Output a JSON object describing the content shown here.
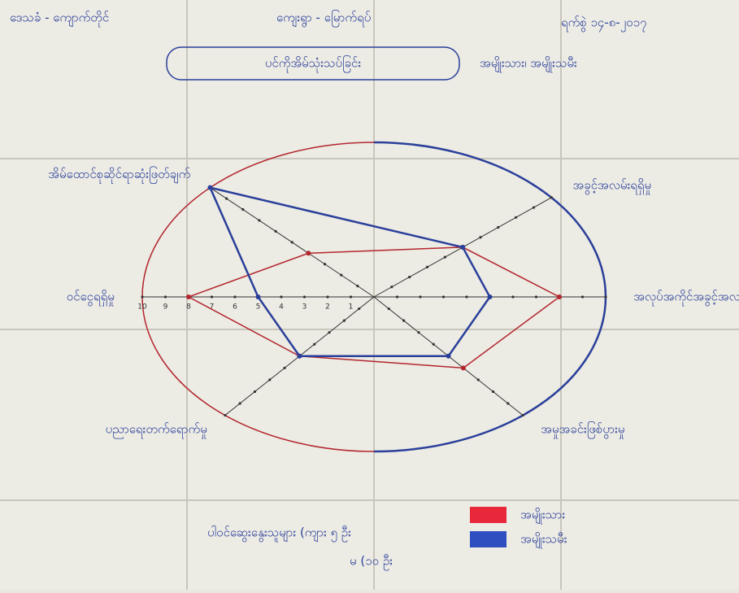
{
  "chart_data": {
    "type": "radar",
    "title": "ပင်ကိုအိမ်သုံးသပ်ခြင်း",
    "subtitle": "အမျိုးသား၊ အမျိုးသမီး",
    "annotations": [
      "ဒေသခံ - ကျောက်တိုင်",
      "ကျေးရွာ - မြောက်ရပ်",
      "ရက်စွဲ ၁၄-၈-၂၀၁၇",
      "ပါဝင်ဆွေးနွေးသူများ (ကျား ၅ ဦး",
      "မ (၁၀ ဦး"
    ],
    "categories": [
      "ဝင်ငွေရရှိမှု",
      "အိမ်ထောင်စုဆိုင်ရာဆုံးဖြတ်ချက်",
      "အခွင့်အလမ်းရရှိမှု",
      "အလုပ်အကိုင်အခွင့်အလမ်း",
      "အမှုအခင်းဖြစ်ပွားမှု",
      "ပညာရေးတက်ရောက်မှု"
    ],
    "series": [
      {
        "name": "အမျိုးသား",
        "color": "#b3262e",
        "values": [
          8,
          4,
          5,
          8,
          6,
          5
        ]
      },
      {
        "name": "အမျိုးသမီး",
        "color": "#2a3f9a",
        "values": [
          5,
          10,
          5,
          5,
          5,
          5
        ]
      }
    ],
    "rlim": [
      0,
      10
    ],
    "rticks": [
      1,
      2,
      3,
      4,
      5,
      6,
      7,
      8,
      9,
      10
    ]
  }
}
